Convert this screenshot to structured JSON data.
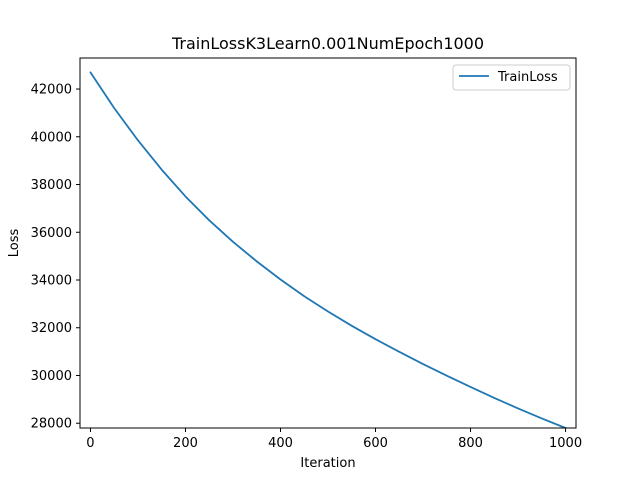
{
  "chart_data": {
    "type": "line",
    "title": "TrainLossK3Learn0.001NumEpoch1000",
    "xlabel": "Iteration",
    "ylabel": "Loss",
    "xlim": [
      -22,
      1022
    ],
    "ylim": [
      27800,
      43300
    ],
    "xticks": [
      0,
      200,
      400,
      600,
      800,
      1000
    ],
    "yticks": [
      28000,
      30000,
      32000,
      34000,
      36000,
      38000,
      40000,
      42000
    ],
    "grid": false,
    "legend_position": "top-right",
    "colors": {
      "series": "#1f77b4"
    },
    "series": [
      {
        "name": "TrainLoss",
        "x": [
          0,
          50,
          100,
          150,
          200,
          250,
          300,
          350,
          400,
          450,
          500,
          550,
          600,
          650,
          700,
          750,
          800,
          850,
          900,
          950,
          1000
        ],
        "y": [
          42700,
          41200,
          39850,
          38620,
          37500,
          36500,
          35600,
          34780,
          34020,
          33320,
          32680,
          32080,
          31520,
          30990,
          30480,
          29990,
          29520,
          29060,
          28620,
          28200,
          27800
        ]
      }
    ]
  }
}
